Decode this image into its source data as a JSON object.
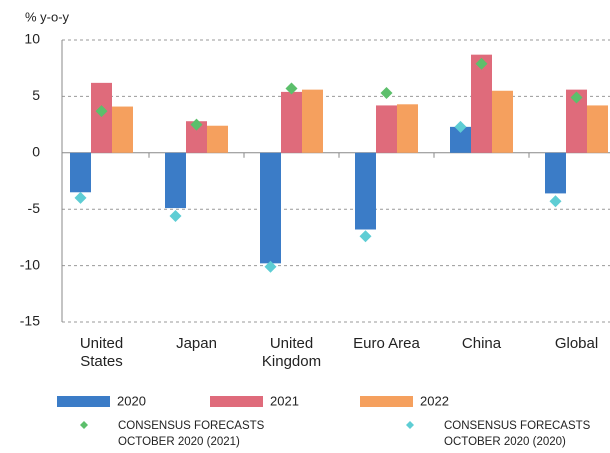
{
  "chart_data": {
    "type": "bar",
    "y_axis_label": "% y-o-y",
    "categories": [
      "United\nStates",
      "Japan",
      "United\nKingdom",
      "Euro Area",
      "China",
      "Global"
    ],
    "series": [
      {
        "name": "2020",
        "color": "#3b7cc7",
        "kind": "bar",
        "values": [
          -3.5,
          -4.9,
          -9.8,
          -6.8,
          2.3,
          -3.6
        ]
      },
      {
        "name": "2021",
        "color": "#df6b7b",
        "kind": "bar",
        "values": [
          6.2,
          2.8,
          5.4,
          4.2,
          8.7,
          5.6
        ]
      },
      {
        "name": "2022",
        "color": "#f5a05e",
        "kind": "bar",
        "values": [
          4.1,
          2.4,
          5.6,
          4.3,
          5.5,
          4.2
        ]
      },
      {
        "name": "CONSENSUS FORECASTS\nOCTOBER 2020 (2021)",
        "color": "#5cbf6b",
        "kind": "marker",
        "values": [
          3.7,
          2.5,
          5.7,
          5.3,
          7.9,
          4.9
        ]
      },
      {
        "name": "CONSENSUS FORECASTS\nOCTOBER 2020 (2020)",
        "color": "#5ecdd4",
        "kind": "marker",
        "values": [
          -4.0,
          -5.6,
          -10.1,
          -7.4,
          2.3,
          -4.3
        ]
      }
    ],
    "ylim": [
      -15,
      10
    ],
    "yticks": [
      -15,
      -10,
      -5,
      0,
      5,
      10
    ],
    "grid": true
  }
}
